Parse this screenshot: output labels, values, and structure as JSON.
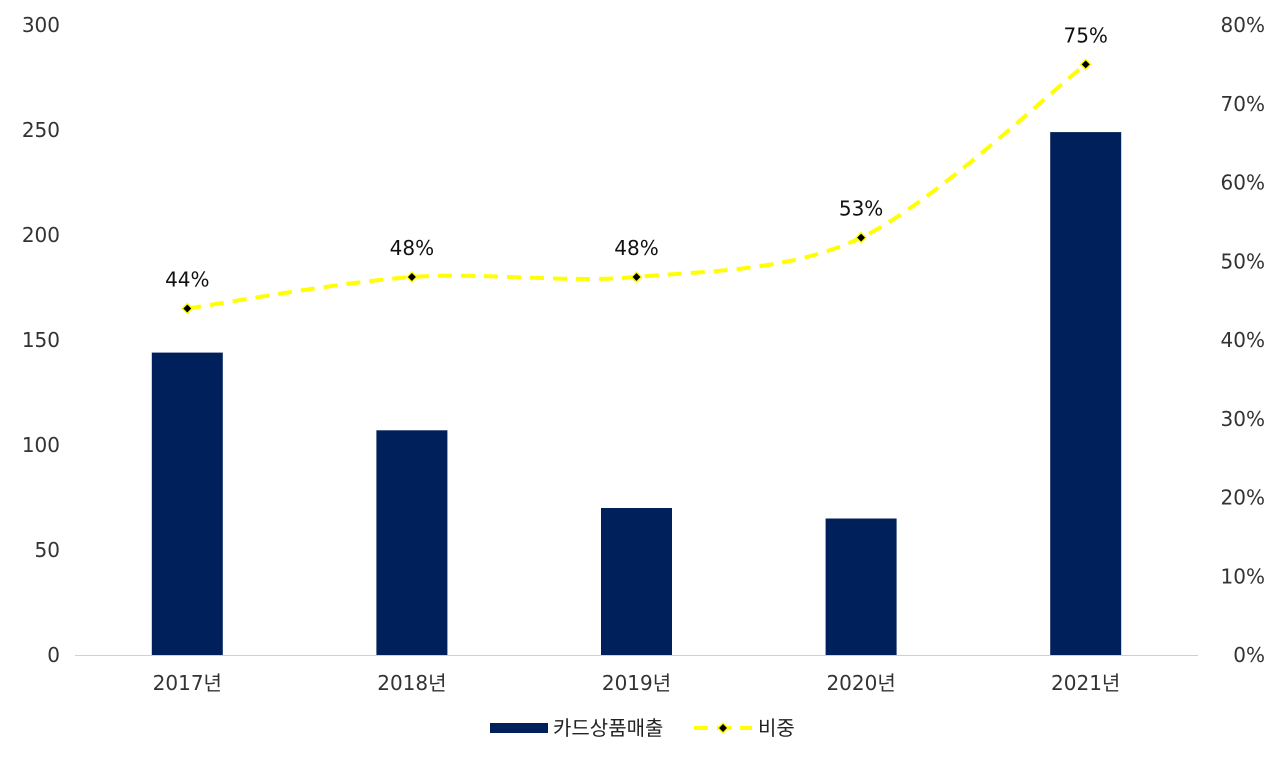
{
  "chart_data": {
    "type": "bar",
    "categories": [
      "2017년",
      "2018년",
      "2019년",
      "2020년",
      "2021년"
    ],
    "series": [
      {
        "name": "카드상품매출",
        "type": "bar",
        "axis": "left",
        "color": "#00205B",
        "values": [
          144,
          107,
          70,
          65,
          249
        ]
      },
      {
        "name": "비중",
        "type": "line",
        "axis": "right",
        "color": "#FFFF00",
        "marker_color": "#000000",
        "line_style": "dashed",
        "values": [
          44,
          48,
          48,
          53,
          75
        ],
        "data_labels": [
          "44%",
          "48%",
          "48%",
          "53%",
          "75%"
        ]
      }
    ],
    "y_left": {
      "min": 0,
      "max": 300,
      "ticks": [
        "0",
        "50",
        "100",
        "150",
        "200",
        "250",
        "300"
      ]
    },
    "y_right": {
      "min": 0,
      "max": 80,
      "ticks": [
        "0%",
        "10%",
        "20%",
        "30%",
        "40%",
        "50%",
        "60%",
        "70%",
        "80%"
      ]
    },
    "grid": false,
    "legend_position": "bottom-center"
  }
}
